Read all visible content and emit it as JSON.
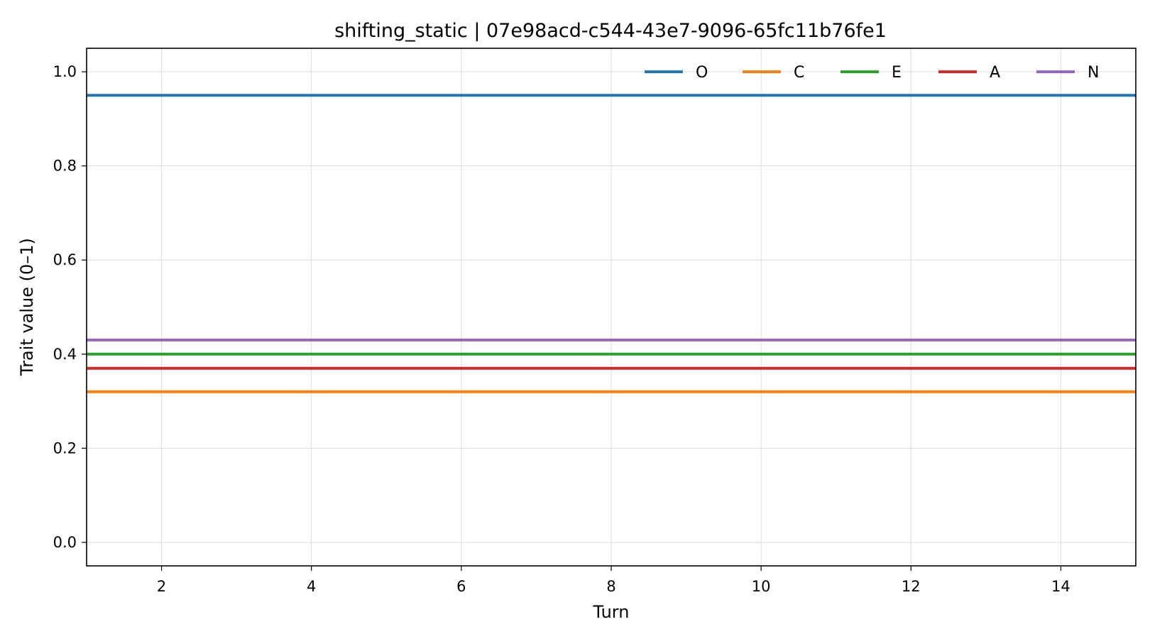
{
  "chart_data": {
    "type": "line",
    "title": "shifting_static | 07e98acd-c544-43e7-9096-65fc11b76fe1",
    "xlabel": "Turn",
    "ylabel": "Trait value (0–1)",
    "xlim": [
      1,
      15
    ],
    "ylim": [
      -0.05,
      1.05
    ],
    "x_ticks": [
      2,
      4,
      6,
      8,
      10,
      12,
      14
    ],
    "x_tick_labels": [
      "2",
      "4",
      "6",
      "8",
      "10",
      "12",
      "14"
    ],
    "y_ticks": [
      0.0,
      0.2,
      0.4,
      0.6,
      0.8,
      1.0
    ],
    "y_tick_labels": [
      "0.0",
      "0.2",
      "0.4",
      "0.6",
      "0.8",
      "1.0"
    ],
    "grid": true,
    "legend_position": "top-right",
    "x": [
      1,
      2,
      3,
      4,
      5,
      6,
      7,
      8,
      9,
      10,
      11,
      12,
      13,
      14,
      15
    ],
    "series": [
      {
        "name": "O",
        "color": "#1f77b4",
        "values": [
          0.95,
          0.95,
          0.95,
          0.95,
          0.95,
          0.95,
          0.95,
          0.95,
          0.95,
          0.95,
          0.95,
          0.95,
          0.95,
          0.95,
          0.95
        ]
      },
      {
        "name": "C",
        "color": "#ff7f0e",
        "values": [
          0.32,
          0.32,
          0.32,
          0.32,
          0.32,
          0.32,
          0.32,
          0.32,
          0.32,
          0.32,
          0.32,
          0.32,
          0.32,
          0.32,
          0.32
        ]
      },
      {
        "name": "E",
        "color": "#2ca02c",
        "values": [
          0.4,
          0.4,
          0.4,
          0.4,
          0.4,
          0.4,
          0.4,
          0.4,
          0.4,
          0.4,
          0.4,
          0.4,
          0.4,
          0.4,
          0.4
        ]
      },
      {
        "name": "A",
        "color": "#d62728",
        "values": [
          0.37,
          0.37,
          0.37,
          0.37,
          0.37,
          0.37,
          0.37,
          0.37,
          0.37,
          0.37,
          0.37,
          0.37,
          0.37,
          0.37,
          0.37
        ]
      },
      {
        "name": "N",
        "color": "#9467bd",
        "values": [
          0.43,
          0.43,
          0.43,
          0.43,
          0.43,
          0.43,
          0.43,
          0.43,
          0.43,
          0.43,
          0.43,
          0.43,
          0.43,
          0.43,
          0.43
        ]
      }
    ]
  }
}
